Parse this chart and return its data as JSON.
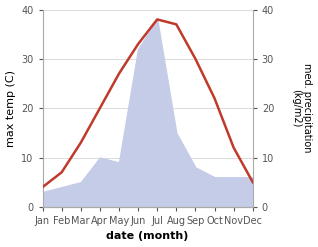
{
  "months": [
    "Jan",
    "Feb",
    "Mar",
    "Apr",
    "May",
    "Jun",
    "Jul",
    "Aug",
    "Sep",
    "Oct",
    "Nov",
    "Dec"
  ],
  "temperature": [
    4,
    7,
    13,
    20,
    27,
    33,
    38,
    37,
    30,
    22,
    12,
    5
  ],
  "precipitation": [
    3,
    4,
    5,
    10,
    9,
    32,
    38,
    15,
    8,
    6,
    6,
    6
  ],
  "temp_color": "#c0392b",
  "precip_color_fill": "#c5cce8",
  "ylim": [
    0,
    40
  ],
  "ylabel_left": "max temp (C)",
  "ylabel_right": "med. precipitation\n(kg/m2)",
  "xlabel": "date (month)",
  "bg_color": "#ffffff",
  "grid_color": "#cccccc",
  "tick_fontsize": 7,
  "label_fontsize": 8,
  "ylabel_right_fontsize": 7,
  "line_width": 1.8
}
